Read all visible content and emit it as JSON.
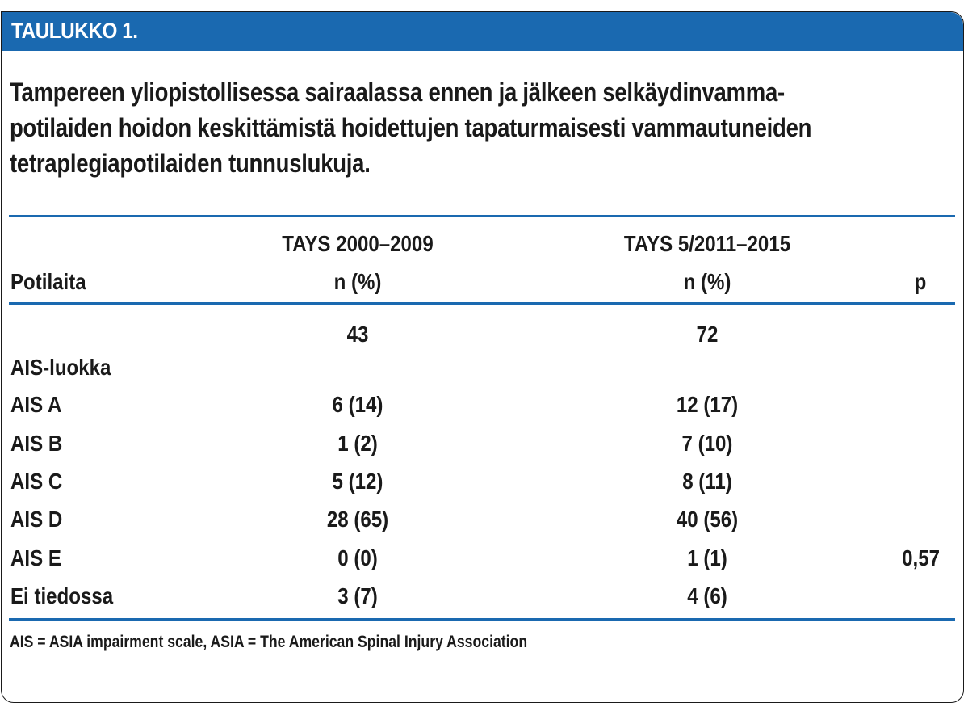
{
  "header": {
    "label": "TAULUKKO 1."
  },
  "caption": {
    "lines": [
      "Tampereen yliopistollisessa sairaalassa ennen ja jälkeen selkäydinvamma-",
      "potilaiden hoidon keskittämistä hoidettujen tapaturmaisesti vammautuneiden",
      "tetraplegiapotilaiden tunnuslukuja."
    ]
  },
  "table": {
    "group_headers": [
      "TAYS 2000–2009",
      "TAYS 5/2011–2015"
    ],
    "columns": [
      "Potilaita",
      "n (%)",
      "n (%)",
      "p"
    ],
    "total_row": [
      "",
      "43",
      "72",
      ""
    ],
    "section_label": "AIS-luokka",
    "rows": [
      [
        "AIS A",
        "6 (14)",
        "12 (17)",
        ""
      ],
      [
        "AIS B",
        "1 (2)",
        "7 (10)",
        ""
      ],
      [
        "AIS C",
        "5 (12)",
        "8 (11)",
        ""
      ],
      [
        "AIS D",
        "28 (65)",
        "40 (56)",
        ""
      ],
      [
        "AIS E",
        "0 (0)",
        "1 (1)",
        "0,57"
      ],
      [
        "Ei tiedossa",
        "3 (7)",
        "4 (6)",
        ""
      ]
    ]
  },
  "footnote": "AIS = ASIA impairment scale, ASIA = The American Spinal Injury Association",
  "colors": {
    "accent": "#1a69b0",
    "text": "#1a1a1a"
  }
}
